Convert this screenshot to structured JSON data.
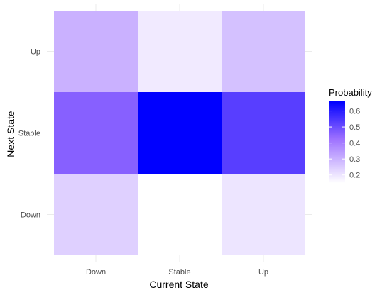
{
  "chart_data": {
    "type": "heatmap",
    "xlabel": "Current State",
    "ylabel": "Next State",
    "x_categories": [
      "Down",
      "Stable",
      "Up"
    ],
    "y_categories": [
      "Down",
      "Stable",
      "Up"
    ],
    "values": [
      {
        "x": "Down",
        "y": "Up",
        "value": 0.3
      },
      {
        "x": "Stable",
        "y": "Up",
        "value": 0.19
      },
      {
        "x": "Up",
        "y": "Up",
        "value": 0.27
      },
      {
        "x": "Down",
        "y": "Stable",
        "value": 0.46
      },
      {
        "x": "Stable",
        "y": "Stable",
        "value": 0.66
      },
      {
        "x": "Up",
        "y": "Stable",
        "value": 0.53
      },
      {
        "x": "Down",
        "y": "Down",
        "value": 0.24
      },
      {
        "x": "Stable",
        "y": "Down",
        "value": 0.15
      },
      {
        "x": "Up",
        "y": "Down",
        "value": 0.2
      }
    ],
    "legend": {
      "title": "Probability",
      "ticks": [
        0.2,
        0.3,
        0.4,
        0.5,
        0.6
      ],
      "tick_labels": [
        "0.2",
        "0.3",
        "0.4",
        "0.5",
        "0.6"
      ],
      "range": [
        0.15,
        0.66
      ],
      "placement": "right"
    },
    "color_low": "#ffffff",
    "color_high": "#0000ff",
    "grid": true
  }
}
